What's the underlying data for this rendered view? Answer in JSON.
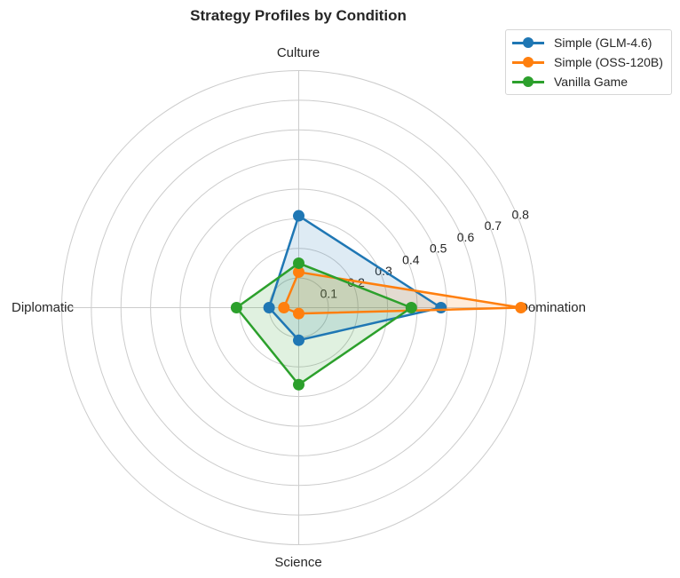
{
  "chart_data": {
    "type": "radar",
    "title": "Strategy Profiles by Condition",
    "categories": [
      "Domination",
      "Culture",
      "Diplomatic",
      "Science"
    ],
    "radial_ticks": [
      "0.1",
      "0.2",
      "0.3",
      "0.4",
      "0.5",
      "0.6",
      "0.7",
      "0.8"
    ],
    "rlim": [
      0,
      0.8
    ],
    "grid": true,
    "legend_position": "upper right (outside)",
    "series": [
      {
        "name": "Simple (GLM-4.6)",
        "color": "#1f77b4",
        "values": [
          0.48,
          0.31,
          0.1,
          0.11
        ]
      },
      {
        "name": "Simple (OSS-120B)",
        "color": "#ff7f0e",
        "values": [
          0.75,
          0.12,
          0.05,
          0.02
        ]
      },
      {
        "name": "Vanilla Game",
        "color": "#2ca02c",
        "values": [
          0.38,
          0.15,
          0.21,
          0.26
        ]
      }
    ]
  },
  "legend": {
    "items": [
      {
        "label": "Simple (GLM-4.6)",
        "color": "#1f77b4"
      },
      {
        "label": "Simple (OSS-120B)",
        "color": "#ff7f0e"
      },
      {
        "label": "Vanilla Game",
        "color": "#2ca02c"
      }
    ]
  }
}
